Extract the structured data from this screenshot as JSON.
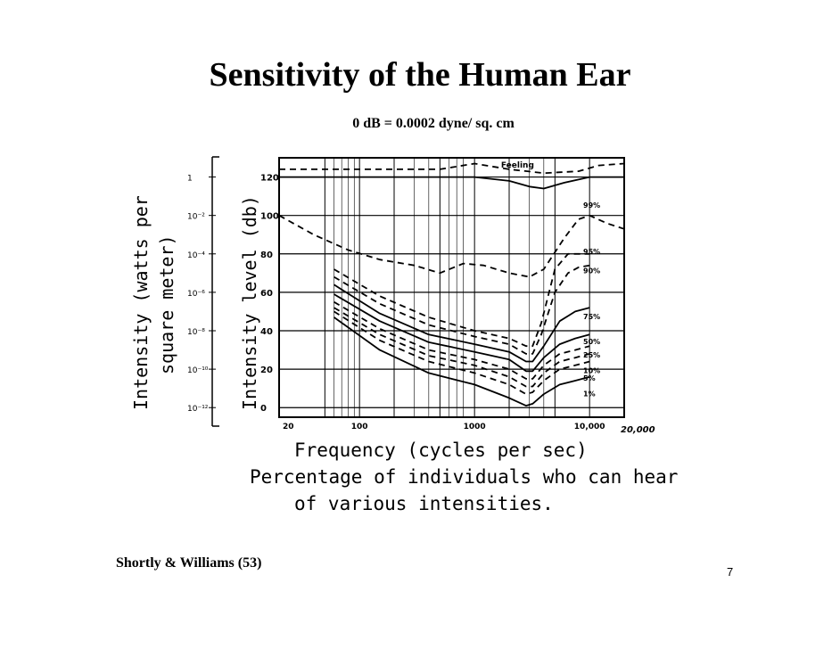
{
  "slide": {
    "title": "Sensitivity of the Human Ear",
    "subtitle": "0 dB = 0.0002 dyne/ sq. cm",
    "source": "Shortly & Williams  (53)",
    "page_number": "7"
  },
  "chart_data": {
    "type": "line",
    "xlabel": "Frequency (cycles per sec)",
    "caption_line1": "Percentage of individuals who can hear",
    "caption_line2": "of various intensities.",
    "ylabel_left_line1": "Intensity (watts per",
    "ylabel_left_line2": "square meter)",
    "ylabel_right": "Intensity level (db)",
    "x_scale": "log",
    "xlim": [
      20,
      20000
    ],
    "ylim": [
      -5,
      130
    ],
    "grid": true,
    "x_ticks": [
      "20",
      "100",
      "1000",
      "10,000"
    ],
    "x_end_label": "20,000",
    "y_ticks_db": [
      "0",
      "20",
      "40",
      "60",
      "80",
      "100",
      "120"
    ],
    "y_ticks_intensity": [
      "10⁻¹²",
      "10⁻¹⁰",
      "10⁻⁸",
      "10⁻⁶",
      "10⁻⁴",
      "10⁻²",
      "1"
    ],
    "series": [
      {
        "name": "Feeling",
        "style": "solid",
        "points": [
          [
            20,
            120
          ],
          [
            500,
            120
          ],
          [
            1000,
            120
          ],
          [
            2000,
            118
          ],
          [
            3000,
            115
          ],
          [
            4000,
            114
          ],
          [
            6000,
            117
          ],
          [
            10000,
            120
          ],
          [
            20000,
            120
          ]
        ]
      },
      {
        "name": "",
        "style": "dashed",
        "points": [
          [
            20,
            124
          ],
          [
            500,
            124
          ],
          [
            1000,
            127
          ],
          [
            2000,
            124
          ],
          [
            4000,
            122
          ],
          [
            8000,
            123
          ],
          [
            12000,
            126
          ],
          [
            20000,
            127
          ]
        ]
      },
      {
        "name": "99%",
        "style": "dashed",
        "points": [
          [
            20,
            100
          ],
          [
            40,
            90
          ],
          [
            80,
            82
          ],
          [
            150,
            77
          ],
          [
            300,
            74
          ],
          [
            500,
            70
          ],
          [
            800,
            75
          ],
          [
            1200,
            74
          ],
          [
            2000,
            70
          ],
          [
            3000,
            68
          ],
          [
            4000,
            72
          ],
          [
            6000,
            88
          ],
          [
            8000,
            98
          ],
          [
            10000,
            100
          ],
          [
            14000,
            96
          ],
          [
            20000,
            93
          ]
        ]
      },
      {
        "name": "95%",
        "style": "dashed",
        "points": [
          [
            60,
            72
          ],
          [
            150,
            58
          ],
          [
            400,
            47
          ],
          [
            1000,
            40
          ],
          [
            2000,
            36
          ],
          [
            2800,
            32
          ],
          [
            3200,
            32
          ],
          [
            3800,
            44
          ],
          [
            5000,
            72
          ],
          [
            6500,
            80
          ],
          [
            8000,
            80
          ],
          [
            10000,
            80
          ]
        ]
      },
      {
        "name": "90%",
        "style": "dashed",
        "points": [
          [
            60,
            68
          ],
          [
            150,
            54
          ],
          [
            400,
            43
          ],
          [
            1000,
            37
          ],
          [
            2000,
            33
          ],
          [
            2800,
            28
          ],
          [
            3200,
            28
          ],
          [
            3800,
            38
          ],
          [
            5000,
            60
          ],
          [
            6500,
            70
          ],
          [
            8000,
            73
          ],
          [
            10000,
            74
          ]
        ]
      },
      {
        "name": "75%",
        "style": "solid",
        "points": [
          [
            60,
            64
          ],
          [
            150,
            49
          ],
          [
            400,
            38
          ],
          [
            1000,
            33
          ],
          [
            2000,
            29
          ],
          [
            2800,
            24
          ],
          [
            3200,
            24
          ],
          [
            4000,
            32
          ],
          [
            5500,
            45
          ],
          [
            7500,
            50
          ],
          [
            10000,
            52
          ]
        ]
      },
      {
        "name": "50%",
        "style": "solid",
        "points": [
          [
            60,
            59
          ],
          [
            150,
            45
          ],
          [
            400,
            34
          ],
          [
            1000,
            29
          ],
          [
            2000,
            25
          ],
          [
            2800,
            19
          ],
          [
            3200,
            19
          ],
          [
            4000,
            26
          ],
          [
            5500,
            33
          ],
          [
            7500,
            36
          ],
          [
            10000,
            38
          ]
        ]
      },
      {
        "name": "25%",
        "style": "dashed",
        "points": [
          [
            60,
            55
          ],
          [
            150,
            41
          ],
          [
            400,
            30
          ],
          [
            1000,
            25
          ],
          [
            2000,
            20
          ],
          [
            2800,
            15
          ],
          [
            3200,
            15
          ],
          [
            4000,
            22
          ],
          [
            5500,
            28
          ],
          [
            7500,
            30
          ],
          [
            10000,
            32
          ]
        ]
      },
      {
        "name": "10%",
        "style": "dashed",
        "points": [
          [
            60,
            52
          ],
          [
            150,
            38
          ],
          [
            400,
            27
          ],
          [
            1000,
            22
          ],
          [
            2000,
            16
          ],
          [
            2800,
            11
          ],
          [
            3200,
            11
          ],
          [
            4000,
            18
          ],
          [
            5500,
            24
          ],
          [
            7500,
            26
          ],
          [
            10000,
            28
          ]
        ]
      },
      {
        "name": "5%",
        "style": "dashed",
        "points": [
          [
            60,
            50
          ],
          [
            150,
            35
          ],
          [
            400,
            24
          ],
          [
            1000,
            18
          ],
          [
            2000,
            12
          ],
          [
            2800,
            7
          ],
          [
            3200,
            8
          ],
          [
            4000,
            14
          ],
          [
            5500,
            20
          ],
          [
            7500,
            22
          ],
          [
            10000,
            24
          ]
        ]
      },
      {
        "name": "1%",
        "style": "solid",
        "points": [
          [
            60,
            47
          ],
          [
            150,
            30
          ],
          [
            400,
            18
          ],
          [
            1000,
            12
          ],
          [
            2000,
            5
          ],
          [
            2800,
            1
          ],
          [
            3200,
            2
          ],
          [
            4000,
            7
          ],
          [
            5500,
            12
          ],
          [
            7500,
            14
          ],
          [
            10000,
            16
          ]
        ]
      }
    ],
    "curve_labels": [
      {
        "text": "Feeling",
        "x": 1700,
        "y": 125
      },
      {
        "text": "99%",
        "x": 8800,
        "y": 104
      },
      {
        "text": "95%",
        "x": 8800,
        "y": 80
      },
      {
        "text": "90%",
        "x": 8800,
        "y": 70
      },
      {
        "text": "75%",
        "x": 8800,
        "y": 46
      },
      {
        "text": "50%",
        "x": 8800,
        "y": 33
      },
      {
        "text": "25%",
        "x": 8800,
        "y": 26
      },
      {
        "text": "10%",
        "x": 8800,
        "y": 18
      },
      {
        "text": "5%",
        "x": 8800,
        "y": 14
      },
      {
        "text": "1%",
        "x": 8800,
        "y": 6
      }
    ]
  }
}
